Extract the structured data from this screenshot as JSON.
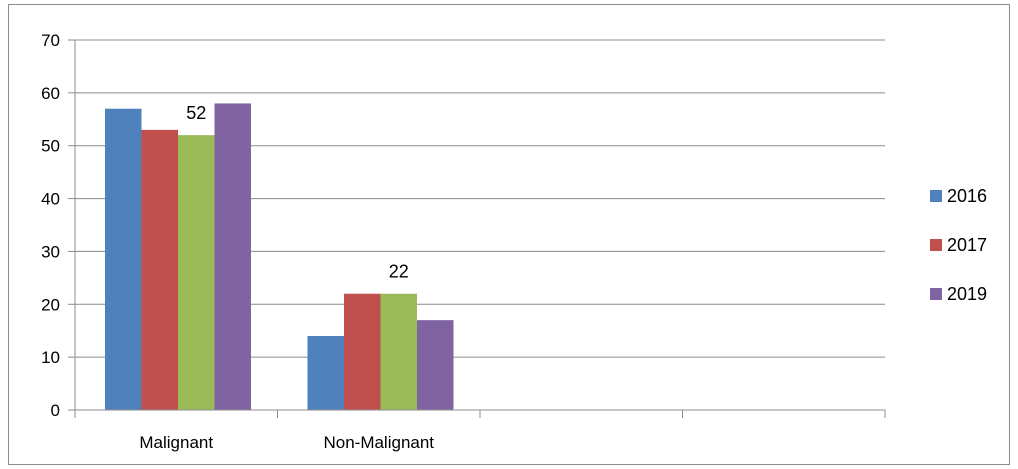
{
  "chart_data": {
    "type": "bar",
    "title": "",
    "xlabel": "",
    "ylabel": "",
    "categories": [
      "Malignant",
      "Non-Malignant",
      "",
      ""
    ],
    "series": [
      {
        "name": "2016",
        "color": "#4f81bd",
        "values": [
          57,
          14,
          null,
          null
        ]
      },
      {
        "name": "2017",
        "color": "#c0504d",
        "values": [
          53,
          22,
          null,
          null
        ]
      },
      {
        "name": "",
        "color": "#9bbb59",
        "values": [
          52,
          22,
          null,
          null
        ]
      },
      {
        "name": "2019",
        "color": "#8064a2",
        "values": [
          58,
          17,
          null,
          null
        ]
      }
    ],
    "data_labels": [
      {
        "category_index": 0,
        "series_index": 2,
        "text": "52"
      },
      {
        "category_index": 1,
        "series_index": 2,
        "text": "22"
      }
    ],
    "ylim": [
      0,
      70
    ],
    "yticks": [
      0,
      10,
      20,
      30,
      40,
      50,
      60,
      70
    ],
    "grid": true,
    "legend": "right",
    "legend_entries": [
      {
        "name": "2016",
        "color": "#4f81bd"
      },
      {
        "name": "2017",
        "color": "#c0504d"
      },
      {
        "name": "2019",
        "color": "#8064a2"
      }
    ]
  }
}
